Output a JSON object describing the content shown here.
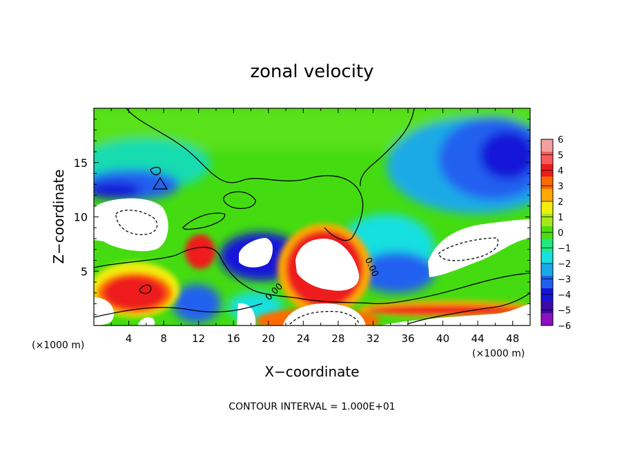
{
  "chart_data": {
    "type": "heatmap",
    "title": "zonal velocity",
    "xlabel": "X−coordinate",
    "ylabel": "Z−coordinate",
    "xunit_left": "(×1000 m)",
    "xunit_right": "(×1000 m)",
    "footer": "CONTOUR INTERVAL = 1.000E+01",
    "xlim": [
      0,
      50
    ],
    "ylim": [
      0,
      20
    ],
    "x_ticks": [
      4,
      8,
      12,
      16,
      20,
      24,
      28,
      32,
      36,
      40,
      44,
      48
    ],
    "y_ticks": [
      5,
      10,
      15
    ],
    "colorbar": {
      "min": -6,
      "max": 6,
      "ticks": [
        6,
        5,
        4,
        3,
        2,
        1,
        0,
        -1,
        -2,
        -3,
        -4,
        -5,
        -6
      ],
      "tick_labels": [
        "6",
        "5",
        "4",
        "3",
        "2",
        "1",
        "0",
        "−1",
        "−2",
        "−3",
        "−4",
        "−5",
        "−6"
      ],
      "colors": [
        "#f4a0a0",
        "#fa5a5a",
        "#ee1c1c",
        "#ff6a00",
        "#ffaa00",
        "#f2ee10",
        "#a8e81a",
        "#4ede10",
        "#20e880",
        "#18e0e0",
        "#1aaae6",
        "#2060f0",
        "#1414d8",
        "#3c0aa8",
        "#8a10c0"
      ]
    },
    "contour_labels": [
      "0.00",
      "0.00"
    ],
    "regions": [
      {
        "kind": "base",
        "value": 0.3
      },
      {
        "kind": "band-left-upper",
        "value": -4
      },
      {
        "kind": "band-right-upper",
        "value": -5
      },
      {
        "kind": "jet-center",
        "value": 5
      },
      {
        "kind": "jet-lower",
        "value": 5
      },
      {
        "kind": "saturated-positive",
        "value": 10
      },
      {
        "kind": "saturated-negative",
        "value": -10
      }
    ]
  }
}
